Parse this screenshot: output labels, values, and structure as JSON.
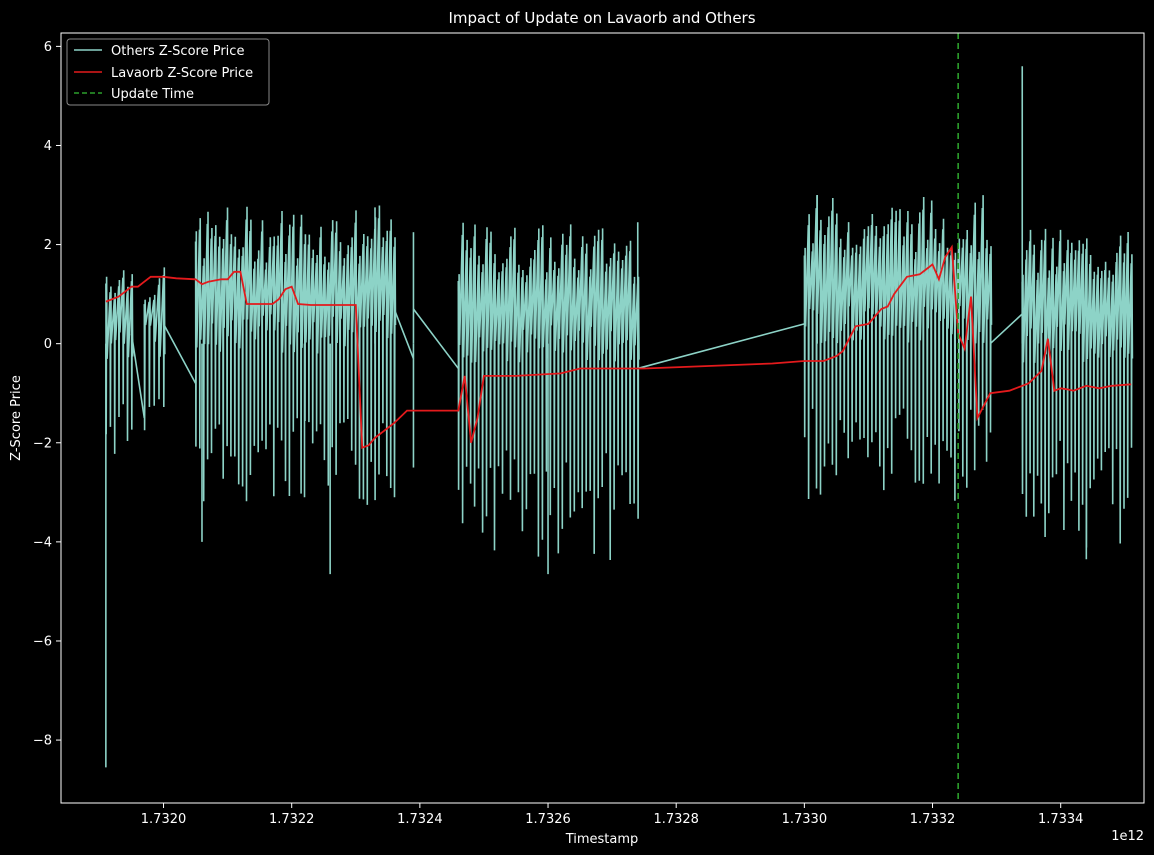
{
  "chart_data": {
    "type": "line",
    "title": "Impact of Update on Lavaorb and Others",
    "xlabel": "Timestamp",
    "ylabel": "Z-Score Price",
    "x_offset_label": "1e12",
    "xlim": [
      1.73184,
      1.73353
    ],
    "ylim": [
      -9.27,
      6.27
    ],
    "x_ticks": [
      1.732,
      1.7322,
      1.7324,
      1.7326,
      1.7328,
      1.733,
      1.7332,
      1.7334
    ],
    "x_tick_labels": [
      "1.7320",
      "1.7322",
      "1.7324",
      "1.7326",
      "1.7328",
      "1.7330",
      "1.7332",
      "1.7334"
    ],
    "y_ticks": [
      -8,
      -6,
      -4,
      -2,
      0,
      2,
      4,
      6
    ],
    "y_tick_labels": [
      "−8",
      "−6",
      "−4",
      "−2",
      "0",
      "2",
      "4",
      "6"
    ],
    "grid": false,
    "legend_position": "top-left",
    "series": [
      {
        "name": "Others Z-Score Price",
        "color": "#8dd3c7",
        "style": "solid",
        "segments": [
          {
            "x_start": 1.73191,
            "x_end": 1.73195,
            "center": 0.0,
            "min": -2.5,
            "max": 1.75,
            "n": 7
          },
          {
            "x_start": 1.73197,
            "x_end": 1.732,
            "center": 0.0,
            "min": -1.9,
            "max": 1.55,
            "n": 5
          },
          {
            "x_start": 1.73205,
            "x_end": 1.73236,
            "center": 0.2,
            "min": -3.5,
            "max": 2.8,
            "n": 52
          },
          {
            "x_start": 1.73246,
            "x_end": 1.73274,
            "center": 0.0,
            "min": -4.65,
            "max": 2.45,
            "n": 46
          },
          {
            "x_start": 1.733,
            "x_end": 1.73329,
            "center": 0.4,
            "min": -3.4,
            "max": 3.0,
            "n": 48
          },
          {
            "x_start": 1.73334,
            "x_end": 1.73351,
            "center": 0.0,
            "min": -4.35,
            "max": 2.35,
            "n": 30
          }
        ],
        "spikes": [
          {
            "x": 1.73191,
            "y": -8.55
          },
          {
            "x": 1.73206,
            "y": -4.0
          },
          {
            "x": 1.73226,
            "y": -4.65
          },
          {
            "x": 1.7326,
            "y": -4.65
          },
          {
            "x": 1.73334,
            "y": 5.6
          },
          {
            "x": 1.73344,
            "y": -4.35
          },
          {
            "x": 1.73222,
            "y": -3.1
          },
          {
            "x": 1.73233,
            "y": 2.75
          },
          {
            "x": 1.73239,
            "y": 2.25
          },
          {
            "x": 1.73239,
            "y": -2.5
          },
          {
            "x": 1.73274,
            "y": 2.45
          },
          {
            "x": 1.73302,
            "y": 3.0
          }
        ],
        "connectors": [
          {
            "x": [
              1.73195,
              1.73197
            ],
            "y": [
              0.2,
              -1.5
            ]
          },
          {
            "x": [
              1.732,
              1.73205
            ],
            "y": [
              0.4,
              -0.8
            ]
          },
          {
            "x": [
              1.73236,
              1.73239
            ],
            "y": [
              0.7,
              -0.3
            ]
          },
          {
            "x": [
              1.73239,
              1.73246
            ],
            "y": [
              0.7,
              -0.5
            ]
          },
          {
            "x": [
              1.73274,
              1.733
            ],
            "y": [
              -0.5,
              0.4
            ]
          },
          {
            "x": [
              1.73329,
              1.73334
            ],
            "y": [
              0.0,
              0.6
            ]
          }
        ]
      },
      {
        "name": "Lavaorb Z-Score Price",
        "color": "#e31a1c",
        "style": "solid",
        "x": [
          1.73191,
          1.73193,
          1.73195,
          1.73196,
          1.73197,
          1.73198,
          1.732,
          1.73202,
          1.73205,
          1.73206,
          1.73207,
          1.73209,
          1.7321,
          1.73211,
          1.73212,
          1.73213,
          1.73215,
          1.73217,
          1.73218,
          1.73219,
          1.7322,
          1.73221,
          1.73223,
          1.73225,
          1.7323,
          1.73231,
          1.73232,
          1.73233,
          1.73234,
          1.73236,
          1.73238,
          1.73246,
          1.73247,
          1.73248,
          1.73249,
          1.7325,
          1.73252,
          1.73255,
          1.73262,
          1.73265,
          1.73275,
          1.73285,
          1.73295,
          1.733,
          1.73303,
          1.73305,
          1.73306,
          1.73308,
          1.7331,
          1.73312,
          1.73313,
          1.73314,
          1.73316,
          1.73318,
          1.73319,
          1.7332,
          1.73321,
          1.73322,
          1.73323,
          1.73324,
          1.73325,
          1.73326,
          1.73327,
          1.73329,
          1.73332,
          1.73335,
          1.73337,
          1.73338,
          1.73339,
          1.7334,
          1.73341,
          1.73342,
          1.73344,
          1.73346,
          1.73348,
          1.73351
        ],
        "y": [
          0.85,
          0.95,
          1.15,
          1.15,
          1.25,
          1.35,
          1.35,
          1.32,
          1.3,
          1.2,
          1.25,
          1.3,
          1.3,
          1.45,
          1.45,
          0.8,
          0.8,
          0.8,
          0.9,
          1.1,
          1.15,
          0.8,
          0.78,
          0.78,
          0.78,
          -2.1,
          -2.05,
          -1.9,
          -1.8,
          -1.6,
          -1.35,
          -1.35,
          -0.65,
          -2.0,
          -1.5,
          -0.65,
          -0.65,
          -0.65,
          -0.6,
          -0.5,
          -0.5,
          -0.45,
          -0.4,
          -0.35,
          -0.35,
          -0.25,
          -0.15,
          0.35,
          0.4,
          0.7,
          0.75,
          1.0,
          1.35,
          1.4,
          1.5,
          1.6,
          1.3,
          1.75,
          1.95,
          0.2,
          -0.1,
          0.95,
          -1.5,
          -1.0,
          -0.95,
          -0.8,
          -0.55,
          0.1,
          -0.95,
          -0.9,
          -0.92,
          -0.95,
          -0.85,
          -0.9,
          -0.85,
          -0.82
        ]
      },
      {
        "name": "Update Time",
        "color": "#2ca02c",
        "style": "dashed",
        "x": 1.73324
      }
    ]
  }
}
